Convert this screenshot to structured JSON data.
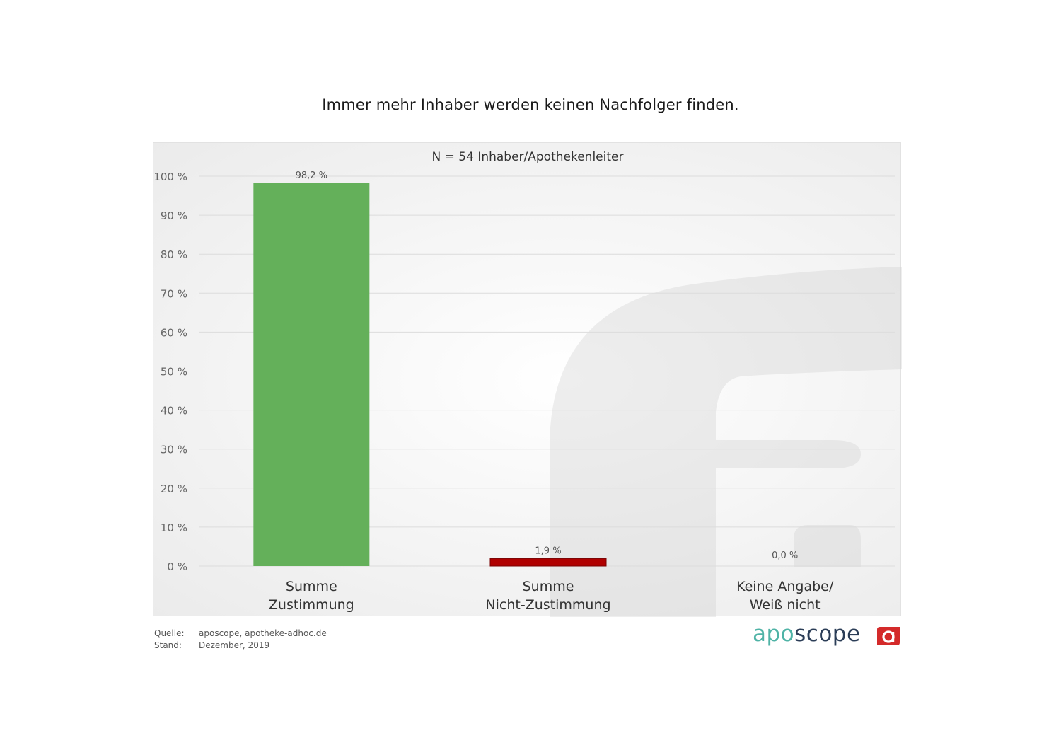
{
  "title": "Immer mehr Inhaber werden keinen Nachfolger finden.",
  "subtitle": "N = 54 Inhaber/Apothekenleiter",
  "footer": {
    "source_label": "Quelle:",
    "source_value": "aposcope, apotheke-adhoc.de",
    "date_label": "Stand:",
    "date_value": "Dezember,  2019"
  },
  "logo": {
    "part1": "apo",
    "part2": "scope"
  },
  "colors": {
    "green": "#64b05a",
    "red": "#b00000",
    "grid": "#dcdcdc"
  },
  "chart_data": {
    "type": "bar",
    "categories": [
      [
        "Summe",
        "Zustimmung"
      ],
      [
        "Summe",
        "Nicht-Zustimmung"
      ],
      [
        "Keine Angabe/",
        "Weiß nicht"
      ]
    ],
    "values": [
      98.2,
      1.9,
      0.0
    ],
    "value_labels": [
      "98,2 %",
      "1,9 %",
      "0,0 %"
    ],
    "bar_colors": [
      "#64b05a",
      "#b00000",
      "#9e9e9e"
    ],
    "yticks": [
      0,
      10,
      20,
      30,
      40,
      50,
      60,
      70,
      80,
      90,
      100
    ],
    "ytick_labels": [
      "0 %",
      "10 %",
      "20 %",
      "30 %",
      "40 %",
      "50 %",
      "60 %",
      "70 %",
      "80 %",
      "90 %",
      "100 %"
    ],
    "ylim": [
      0,
      100
    ],
    "grid": true
  }
}
